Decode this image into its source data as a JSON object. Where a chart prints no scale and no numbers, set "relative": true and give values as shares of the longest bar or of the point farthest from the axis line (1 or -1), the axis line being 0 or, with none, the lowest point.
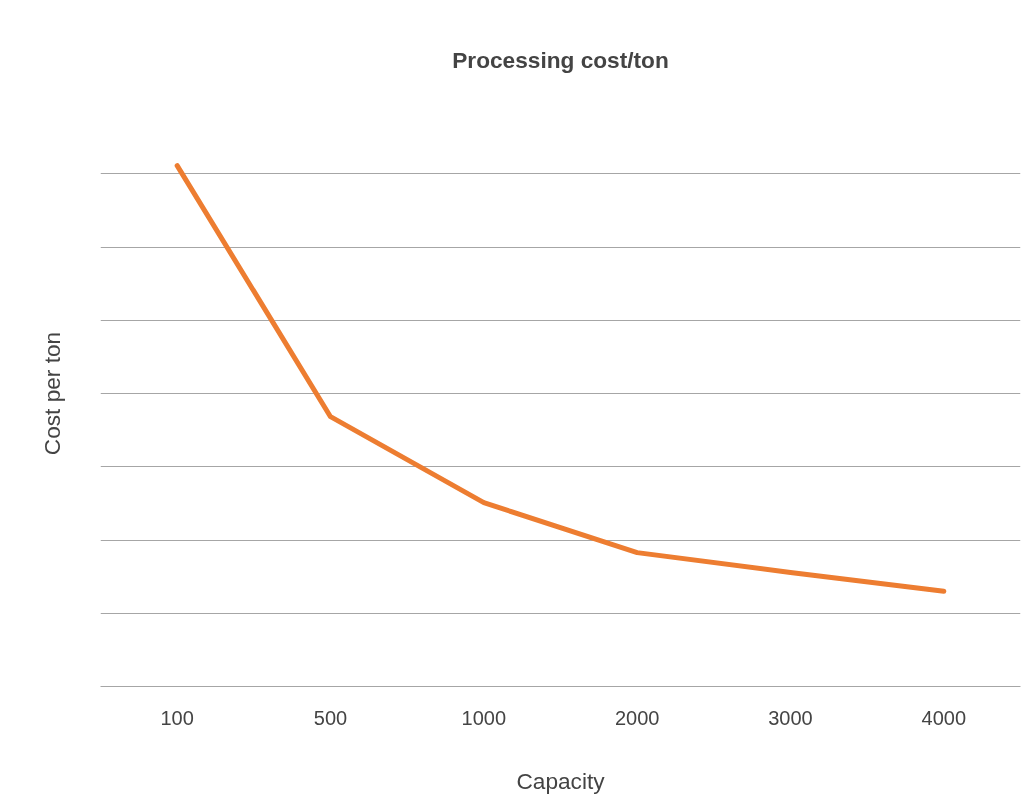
{
  "chart_data": {
    "type": "line",
    "title": "Processing cost/ton",
    "xlabel": "Capacity",
    "ylabel": "Cost per ton",
    "categories": [
      "100",
      "500",
      "1000",
      "2000",
      "3000",
      "4000"
    ],
    "series": [
      {
        "color": "#ed7d31",
        "values": [
          1,
          0.518,
          0.353,
          0.257,
          0.219,
          0.183
        ]
      }
    ],
    "relative": true,
    "grid": "y",
    "marker": "none",
    "line_style": "solid"
  }
}
